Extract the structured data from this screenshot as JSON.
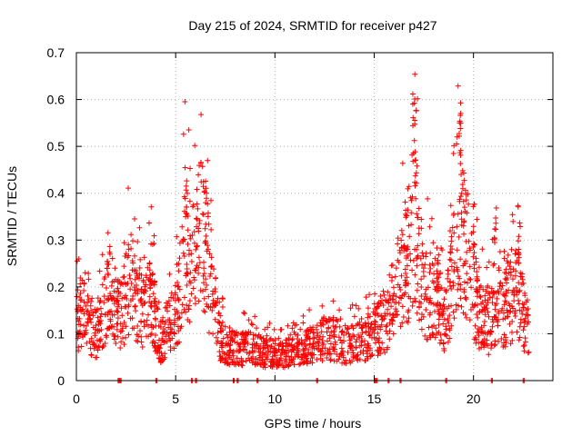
{
  "chart_data": {
    "type": "scatter",
    "title": "Day 215 of 2024, SRMTID for receiver p427",
    "xlabel": "GPS time / hours",
    "ylabel": "SRMTID / TECUs",
    "xlim": [
      0,
      24
    ],
    "ylim": [
      0,
      0.7
    ],
    "xticks": [
      0,
      5,
      10,
      15,
      20
    ],
    "yticks": [
      0,
      0.1,
      0.2,
      0.3,
      0.4,
      0.5,
      0.6,
      0.7
    ],
    "grid": true,
    "marker": "plus",
    "color": "#ff0000",
    "series": [
      {
        "name": "SRMTID",
        "profile": [
          [
            0.0,
            0.12
          ],
          [
            0.25,
            0.16
          ],
          [
            0.5,
            0.18
          ],
          [
            0.75,
            0.12
          ],
          [
            1.0,
            0.1
          ],
          [
            1.25,
            0.14
          ],
          [
            1.5,
            0.18
          ],
          [
            1.75,
            0.2
          ],
          [
            2.0,
            0.15
          ],
          [
            2.25,
            0.14
          ],
          [
            2.5,
            0.19
          ],
          [
            2.75,
            0.22
          ],
          [
            3.0,
            0.17
          ],
          [
            3.25,
            0.16
          ],
          [
            3.5,
            0.14
          ],
          [
            3.75,
            0.2
          ],
          [
            4.0,
            0.12
          ],
          [
            4.25,
            0.08
          ],
          [
            4.5,
            0.11
          ],
          [
            4.75,
            0.12
          ],
          [
            5.0,
            0.14
          ],
          [
            5.25,
            0.2
          ],
          [
            5.5,
            0.3
          ],
          [
            5.75,
            0.25
          ],
          [
            6.0,
            0.27
          ],
          [
            6.25,
            0.32
          ],
          [
            6.5,
            0.3
          ],
          [
            6.75,
            0.2
          ],
          [
            7.0,
            0.15
          ],
          [
            7.25,
            0.09
          ],
          [
            7.5,
            0.08
          ],
          [
            8.0,
            0.07
          ],
          [
            8.5,
            0.07
          ],
          [
            9.0,
            0.07
          ],
          [
            9.5,
            0.06
          ],
          [
            10.0,
            0.06
          ],
          [
            10.5,
            0.06
          ],
          [
            11.0,
            0.07
          ],
          [
            11.5,
            0.07
          ],
          [
            12.0,
            0.08
          ],
          [
            12.5,
            0.09
          ],
          [
            13.0,
            0.09
          ],
          [
            13.5,
            0.08
          ],
          [
            14.0,
            0.08
          ],
          [
            14.5,
            0.09
          ],
          [
            15.0,
            0.11
          ],
          [
            15.5,
            0.13
          ],
          [
            15.75,
            0.15
          ],
          [
            16.0,
            0.18
          ],
          [
            16.25,
            0.22
          ],
          [
            16.5,
            0.25
          ],
          [
            16.75,
            0.28
          ],
          [
            17.0,
            0.36
          ],
          [
            17.25,
            0.26
          ],
          [
            17.5,
            0.2
          ],
          [
            17.75,
            0.18
          ],
          [
            18.0,
            0.2
          ],
          [
            18.25,
            0.17
          ],
          [
            18.5,
            0.12
          ],
          [
            18.75,
            0.16
          ],
          [
            19.0,
            0.24
          ],
          [
            19.25,
            0.32
          ],
          [
            19.5,
            0.3
          ],
          [
            19.75,
            0.26
          ],
          [
            20.0,
            0.2
          ],
          [
            20.25,
            0.15
          ],
          [
            20.5,
            0.14
          ],
          [
            20.75,
            0.12
          ],
          [
            21.0,
            0.16
          ],
          [
            21.25,
            0.18
          ],
          [
            21.5,
            0.15
          ],
          [
            21.75,
            0.17
          ],
          [
            22.0,
            0.18
          ],
          [
            22.25,
            0.2
          ],
          [
            22.5,
            0.15
          ],
          [
            22.75,
            0.1
          ]
        ],
        "peaks": [
          [
            5.5,
            0.44
          ],
          [
            6.1,
            0.41
          ],
          [
            6.5,
            0.43
          ],
          [
            3.9,
            0.31
          ],
          [
            1.6,
            0.26
          ],
          [
            17.0,
            0.66
          ],
          [
            17.1,
            0.63
          ],
          [
            19.3,
            0.6
          ],
          [
            19.35,
            0.54
          ],
          [
            19.5,
            0.45
          ],
          [
            21.1,
            0.37
          ],
          [
            22.3,
            0.39
          ],
          [
            16.6,
            0.31
          ],
          [
            18.2,
            0.29
          ],
          [
            20.0,
            0.38
          ]
        ],
        "zero_points": [
          2.1,
          2.2,
          4.0,
          5.8,
          6.0,
          7.9,
          8.1,
          9.1,
          12.1,
          15.0,
          15.1,
          15.7,
          16.3,
          18.6,
          20.9,
          22.5
        ]
      }
    ]
  }
}
